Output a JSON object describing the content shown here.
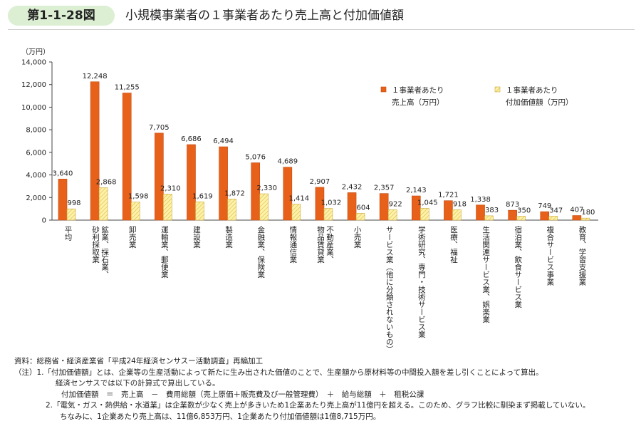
{
  "header": {
    "figure_number": "第1-1-28図",
    "title": "小規模事業者の１事業者あたり売上高と付加価値額"
  },
  "chart_data": {
    "type": "bar",
    "unit_label": "（万円）",
    "ylim": [
      0,
      14000
    ],
    "yticks": [
      "0",
      "2,000",
      "4,000",
      "6,000",
      "8,000",
      "10,000",
      "12,000",
      "14,000"
    ],
    "ytick_values": [
      0,
      2000,
      4000,
      6000,
      8000,
      10000,
      12000,
      14000
    ],
    "categories": [
      "平均",
      "鉱業、採石業、砂利採取業",
      "卸売業",
      "運輸業、郵便業",
      "建設業",
      "製造業",
      "金融業、保険業",
      "情報通信業",
      "不動産業、物品賃貸業",
      "小売業",
      "サービス業（他に分類されないもの）",
      "学術研究、専門・技術サービス業",
      "医療、福祉",
      "生活関連サービス業、娯楽業",
      "宿泊業、飲食サービス業",
      "複合サービス事業",
      "教育、学習支援業"
    ],
    "category_label_lines": [
      [
        "平均"
      ],
      [
        "鉱業、採石業、",
        "砂利採取業"
      ],
      [
        "卸売業"
      ],
      [
        "運輸業、郵便業"
      ],
      [
        "建設業"
      ],
      [
        "製造業"
      ],
      [
        "金融業、保険業"
      ],
      [
        "情報通信業"
      ],
      [
        "不動産業、",
        "物品賃貸業"
      ],
      [
        "小売業"
      ],
      [
        "サービス業（他に分類されないもの）"
      ],
      [
        "学術研究、専門・技術サービス業"
      ],
      [
        "医療、福祉"
      ],
      [
        "生活関連サービス業、娯楽業"
      ],
      [
        "宿泊業、飲食サービス業"
      ],
      [
        "複合サービス事業"
      ],
      [
        "教育、学習支援業"
      ]
    ],
    "series": [
      {
        "name_lines": [
          "１事業者あたり",
          "売上高（万円）"
        ],
        "color": "#e8611a",
        "values": [
          3640,
          12248,
          11255,
          7705,
          6686,
          6494,
          5076,
          4689,
          2907,
          2432,
          2357,
          2143,
          1721,
          1338,
          873,
          749,
          407
        ],
        "labels": [
          "3,640",
          "12,248",
          "11,255",
          "7,705",
          "6,686",
          "6,494",
          "5,076",
          "4,689",
          "2,907",
          "2,432",
          "2,357",
          "2,143",
          "1,721",
          "1,338",
          "873",
          "749",
          "407"
        ]
      },
      {
        "name_lines": [
          "１事業者あたり",
          "付加価値額（万円）"
        ],
        "color": "#fdf2a8",
        "hatch_color": "#d9b84a",
        "values": [
          998,
          2868,
          1598,
          2310,
          1619,
          1872,
          2330,
          1414,
          1032,
          604,
          922,
          1045,
          918,
          383,
          350,
          347,
          180
        ],
        "labels": [
          "998",
          "2,868",
          "1,598",
          "2,310",
          "1,619",
          "1,872",
          "2,330",
          "1,414",
          "1,032",
          "604",
          "922",
          "1,045",
          "918",
          "383",
          "350",
          "347",
          "180"
        ]
      }
    ],
    "legend_position": "top-right",
    "grid": false
  },
  "notes": {
    "source": "資料：総務省・経済産業省「平成24年経済センサスー活動調査」再編加工",
    "note1": "（注）1.「付加価値額」とは、企業等の生産活動によって新たに生み出された価値のことで、生産額から原材料等の中間投入額を差し引くことによって算出。",
    "note1_b": "経済センサスでは以下の計算式で算出している。",
    "note1_c": "付加価値額　＝　売上高　－　費用総額（売上原価＋販売費及び一般管理費）　＋　給与総額　＋　租税公課",
    "note2": "2.「電気・ガス・熱供給・水道業」は企業数が少なく売上が多きいため1企業あたり売上高が11億円を超える。このため、グラフ比較に馴染まず掲載していない。",
    "note2_b": "ちなみに、1企業あたり売上高は、11億6,853万円、1企業あたり付加価値額は1億8,715万円。"
  }
}
